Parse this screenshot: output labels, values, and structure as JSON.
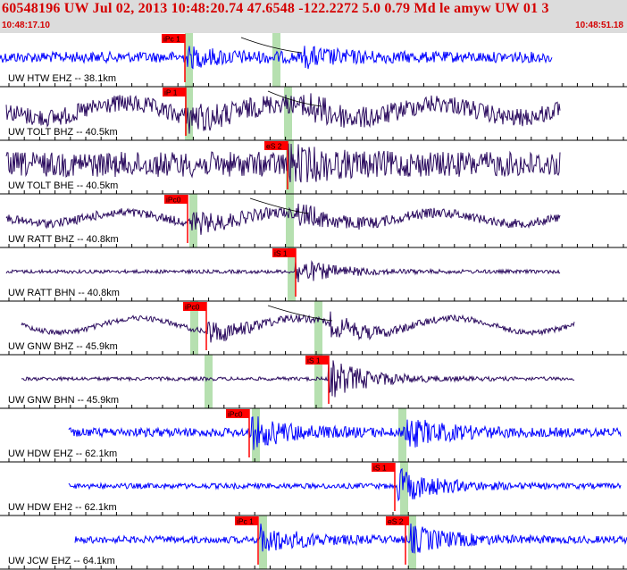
{
  "header": {
    "title": "60548196 UW Jul 02, 2013 10:48:20.74   47.6548 -122.2272  5.0 0.79 Md le amyw UW 01   3",
    "start_time": "10:48:17.10",
    "end_time": "10:48:51.18"
  },
  "colors": {
    "header_bg": "#dcdcdc",
    "header_text": "#d40000",
    "trace_blue": "#0000ff",
    "trace_navy": "#2a0a5e",
    "pick_red": "#ff0000",
    "pick_window": "#b6e0b0"
  },
  "traces": [
    {
      "label": "UW HTW EHZ -- 38.1km",
      "pick": "iPc 1",
      "color": "blue"
    },
    {
      "label": "UW TOLT BHZ -- 40.5km",
      "pick": "iP 1",
      "color": "navy"
    },
    {
      "label": "UW TOLT BHE -- 40.5km",
      "pick": "eS 2",
      "color": "navy"
    },
    {
      "label": "UW RATT BHZ -- 40.8km",
      "pick": "iPc0",
      "color": "navy"
    },
    {
      "label": "UW RATT BHN -- 40.8km",
      "pick": "iS 1",
      "color": "navy"
    },
    {
      "label": "UW GNW BHZ -- 45.9km",
      "pick": "iPc0",
      "color": "navy"
    },
    {
      "label": "UW GNW BHN -- 45.9km",
      "pick": "iS 1",
      "color": "navy"
    },
    {
      "label": "UW HDW EHZ -- 62.1km",
      "pick": "iPc0",
      "color": "blue"
    },
    {
      "label": "UW HDW EH2 -- 62.1km",
      "pick": "iS 1",
      "color": "blue"
    },
    {
      "label": "UW JCW EHZ -- 64.1km",
      "pick": "iPc 1",
      "pick2": "eS 2",
      "color": "blue"
    }
  ]
}
